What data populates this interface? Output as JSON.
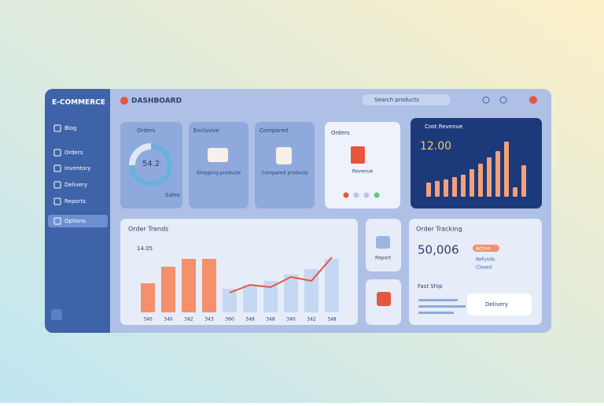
{
  "brand": "E-COMMERCE",
  "header": {
    "title": "DASHBOARD",
    "search": "Search products"
  },
  "sidebar": [
    "Blog",
    "Orders",
    "Inventory",
    "Delivery",
    "Reports",
    "Options"
  ],
  "cards": [
    {
      "title": "Orders",
      "value": "54.2",
      "note": "Sales"
    },
    {
      "title": "Exclusive",
      "text": "Shopping products"
    },
    {
      "title": "Compared",
      "text": "Compared products"
    },
    {
      "title": "Orders",
      "text": "Revenue"
    }
  ],
  "revenue": {
    "title": "Cost Revenue",
    "value": "12.00",
    "color": "#f4a07c",
    "bars": [
      18,
      20,
      22,
      25,
      28,
      35,
      42,
      50,
      58,
      70,
      12,
      40
    ]
  },
  "trends": {
    "title": "Order Trends",
    "value": "14.05",
    "labels": [
      "340",
      "340",
      "342",
      "343",
      "360",
      "348",
      "348",
      "340",
      "342",
      "348"
    ],
    "series": [
      {
        "color": "#f4906c",
        "values": [
          37,
          58,
          68,
          68,
          null,
          null,
          null,
          null,
          null,
          null
        ]
      },
      {
        "color": "#c4d8f2",
        "values": [
          null,
          null,
          null,
          null,
          30,
          35,
          40,
          48,
          55,
          68
        ]
      }
    ],
    "line": {
      "color": "#e8553f",
      "values": [
        null,
        null,
        null,
        null,
        25,
        35,
        32,
        45,
        40,
        70
      ]
    }
  },
  "small": {
    "text": "Report"
  },
  "tracking": {
    "title": "Order Tracking",
    "value": "50,006",
    "tags": [
      "Active",
      "Refunds",
      "Closed"
    ],
    "ship_title": "Fast Ship",
    "ship_text": "Delivery"
  }
}
